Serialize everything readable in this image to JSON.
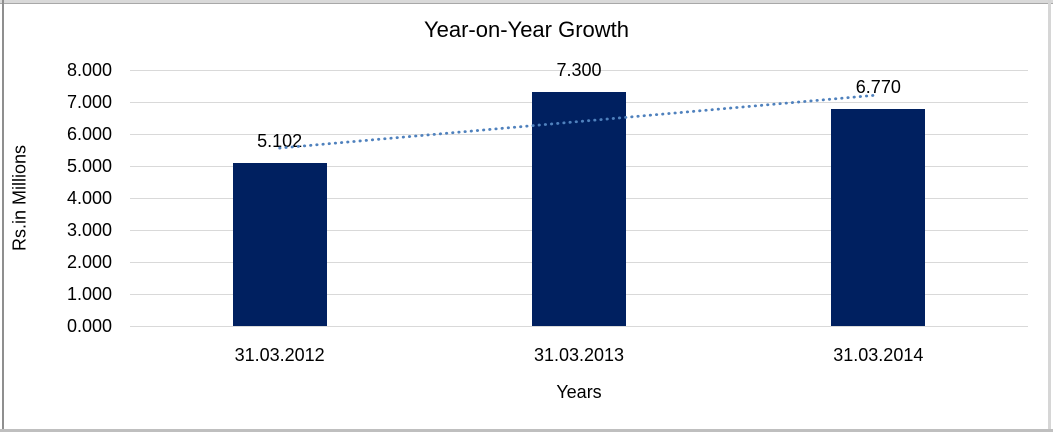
{
  "window": {
    "edges": [
      "top",
      "left",
      "right",
      "bottom"
    ]
  },
  "chart_data": {
    "type": "bar",
    "title": "Year-on-Year Growth",
    "xlabel": "Years",
    "ylabel": "Rs.in Millions",
    "categories": [
      "31.03.2012",
      "31.03.2013",
      "31.03.2014"
    ],
    "values": [
      5.102,
      7.3,
      6.77
    ],
    "data_labels": [
      "5.102",
      "7.300",
      "6.770"
    ],
    "ylim": [
      0,
      8
    ],
    "ytick_step": 1,
    "ytick_labels": [
      "0.000",
      "1.000",
      "2.000",
      "3.000",
      "4.000",
      "5.000",
      "6.000",
      "7.000",
      "8.000"
    ],
    "grid": true,
    "legend": false,
    "trendline": {
      "type": "linear",
      "style": "dotted",
      "start_value": 5.56,
      "end_value": 7.22
    }
  },
  "colors": {
    "bar": "#002060",
    "trendline": "#4f81bd",
    "gridline": "#d9d9d9",
    "text": "#000000"
  }
}
